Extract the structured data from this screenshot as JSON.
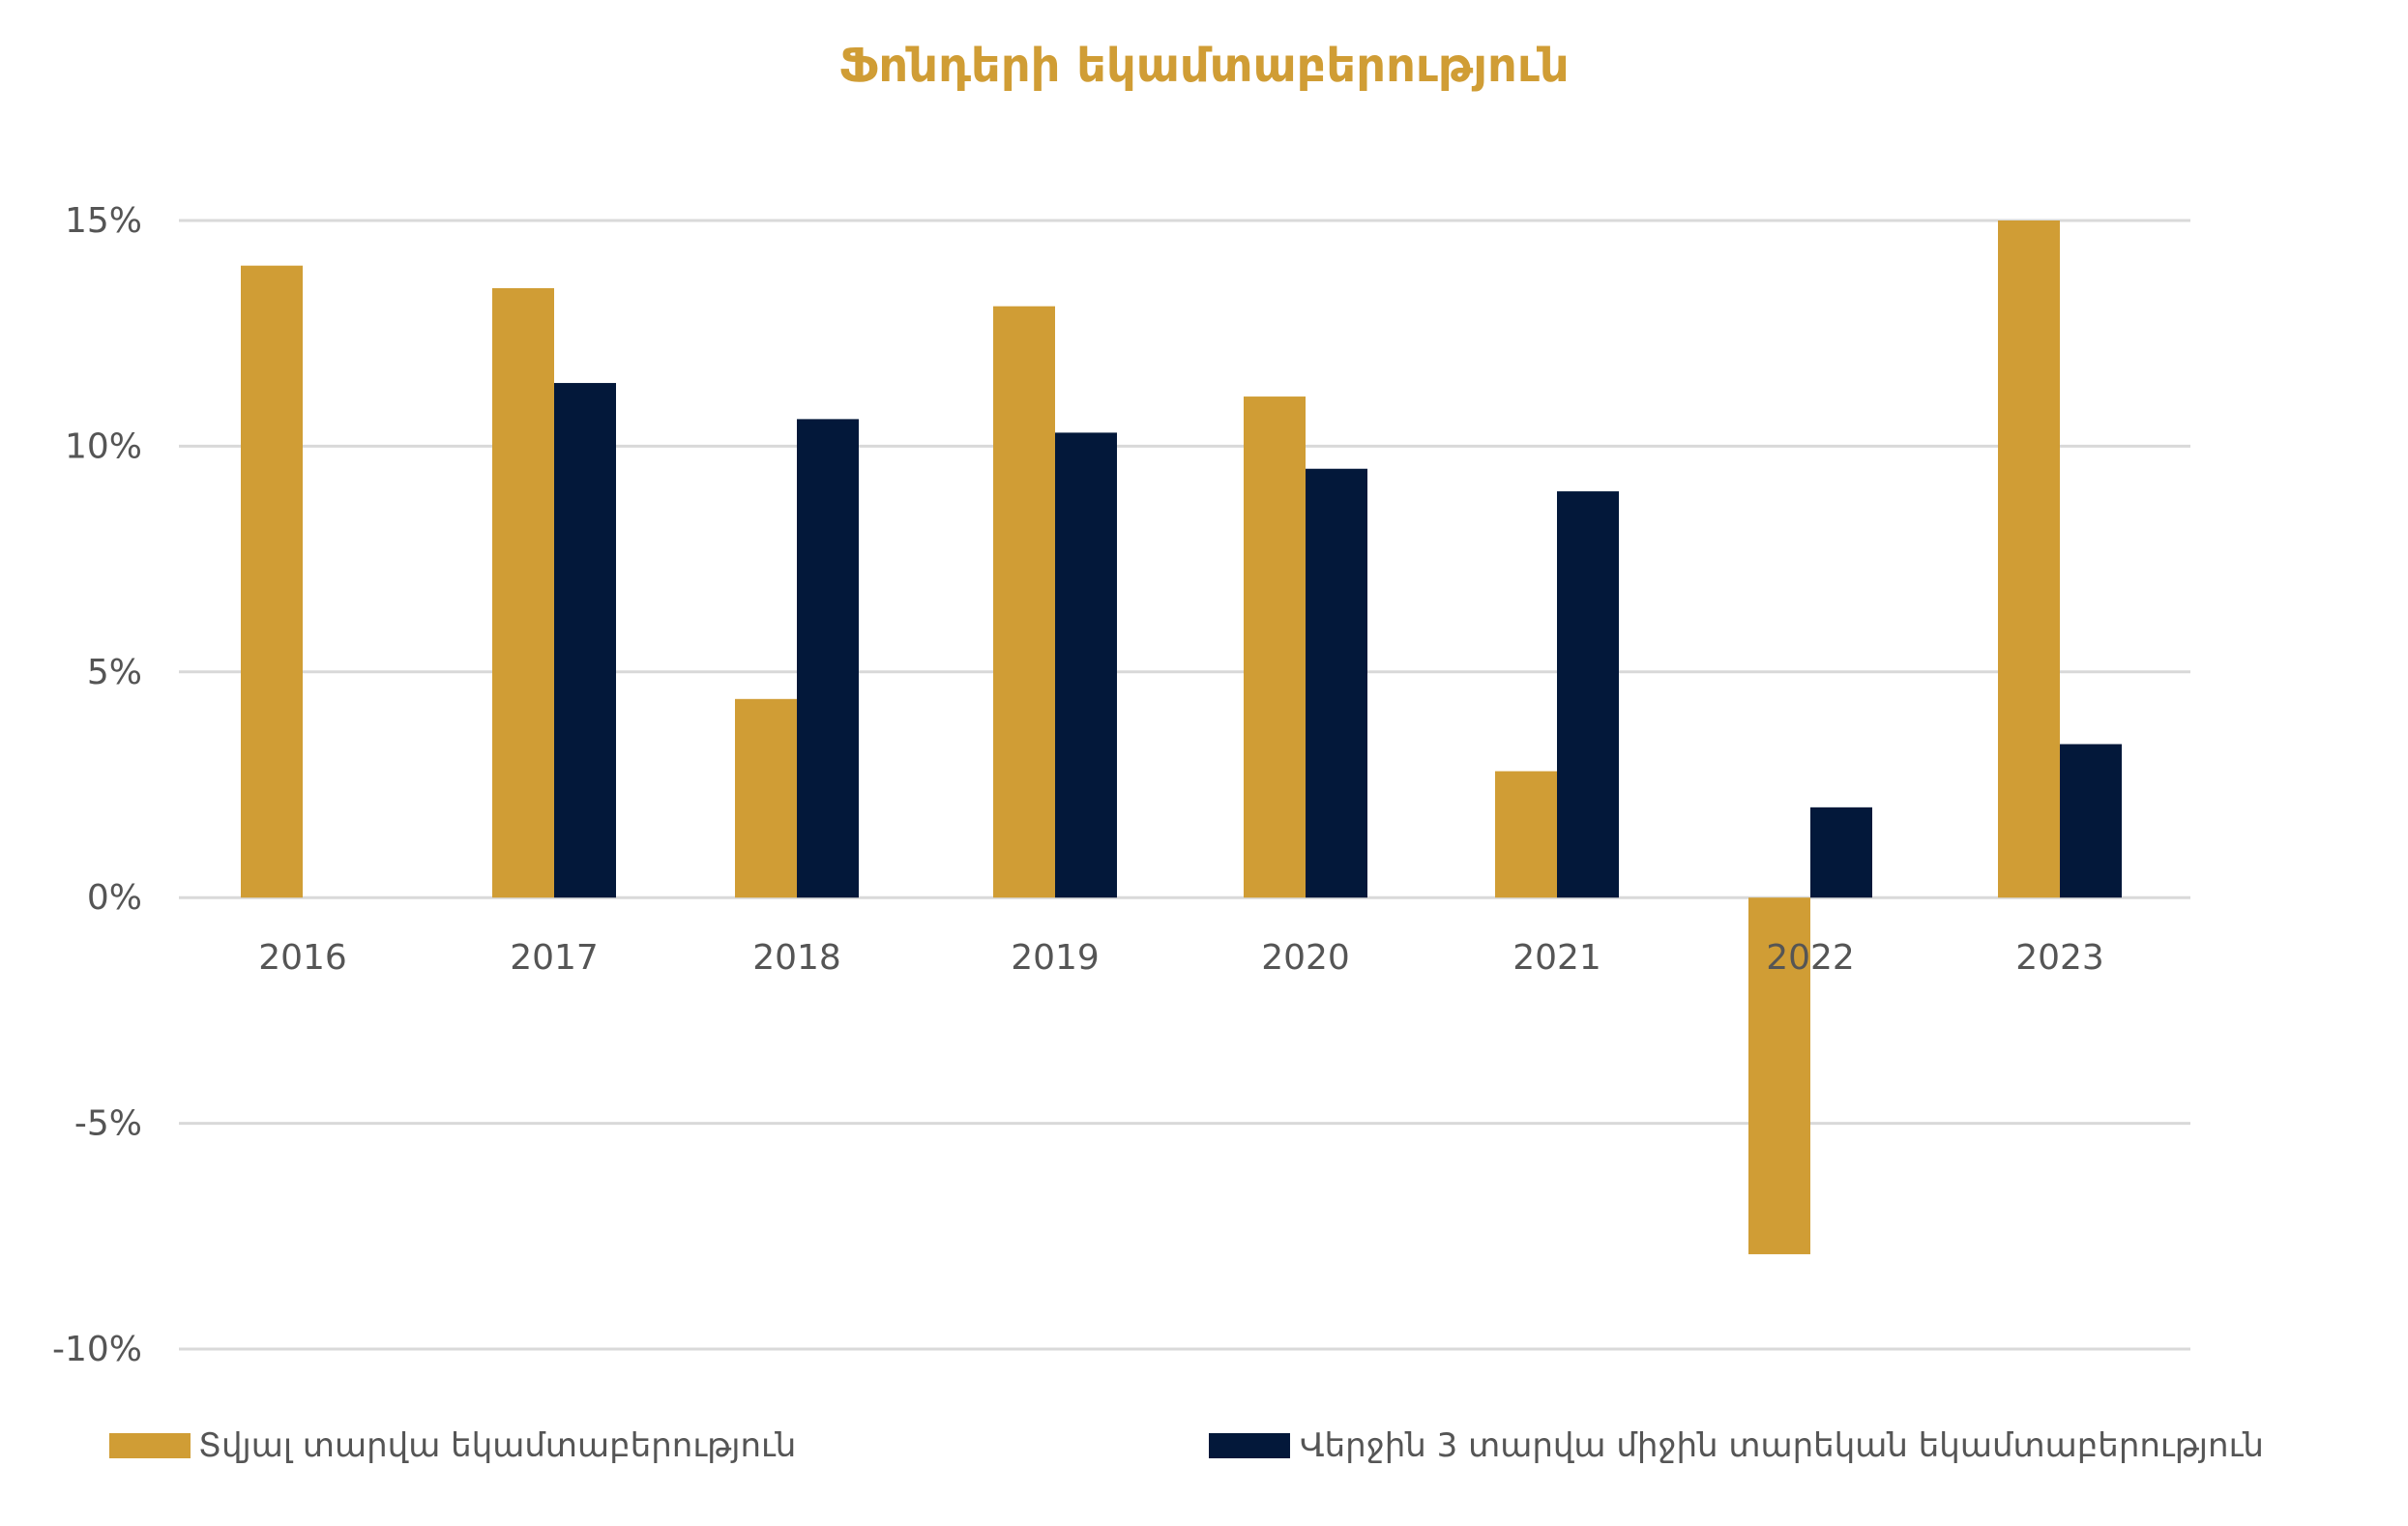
{
  "chart_data": {
    "type": "bar",
    "title": "Ֆոնդերի եկամտաբերություն",
    "xlabel": "",
    "ylabel": "",
    "categories": [
      "2016",
      "2017",
      "2018",
      "2019",
      "2020",
      "2021",
      "2022",
      "2023"
    ],
    "series": [
      {
        "name": "Տվյալ տարվա եկամտաբերություն",
        "values": [
          14.0,
          13.5,
          4.4,
          13.1,
          11.1,
          2.8,
          -7.9,
          15.0
        ]
      },
      {
        "name": "Վերջին 3 տարվա միջին տարեկան եկամտաբերություն",
        "values": [
          null,
          11.4,
          10.6,
          10.3,
          9.5,
          9.0,
          2.0,
          3.4
        ]
      }
    ],
    "yticks": [
      15,
      10,
      5,
      0,
      -5,
      -10
    ],
    "ytick_labels": [
      "15%",
      "10%",
      "5%",
      "0%",
      "-5%",
      "-10%"
    ],
    "ylim": [
      -10,
      15
    ],
    "grid": true,
    "legend_position": "bottom"
  },
  "colors": {
    "series_1": "#D09D35",
    "series_2": "#03183A",
    "title": "#D09D35",
    "grid": "#D9D9D9",
    "text": "#555555"
  }
}
